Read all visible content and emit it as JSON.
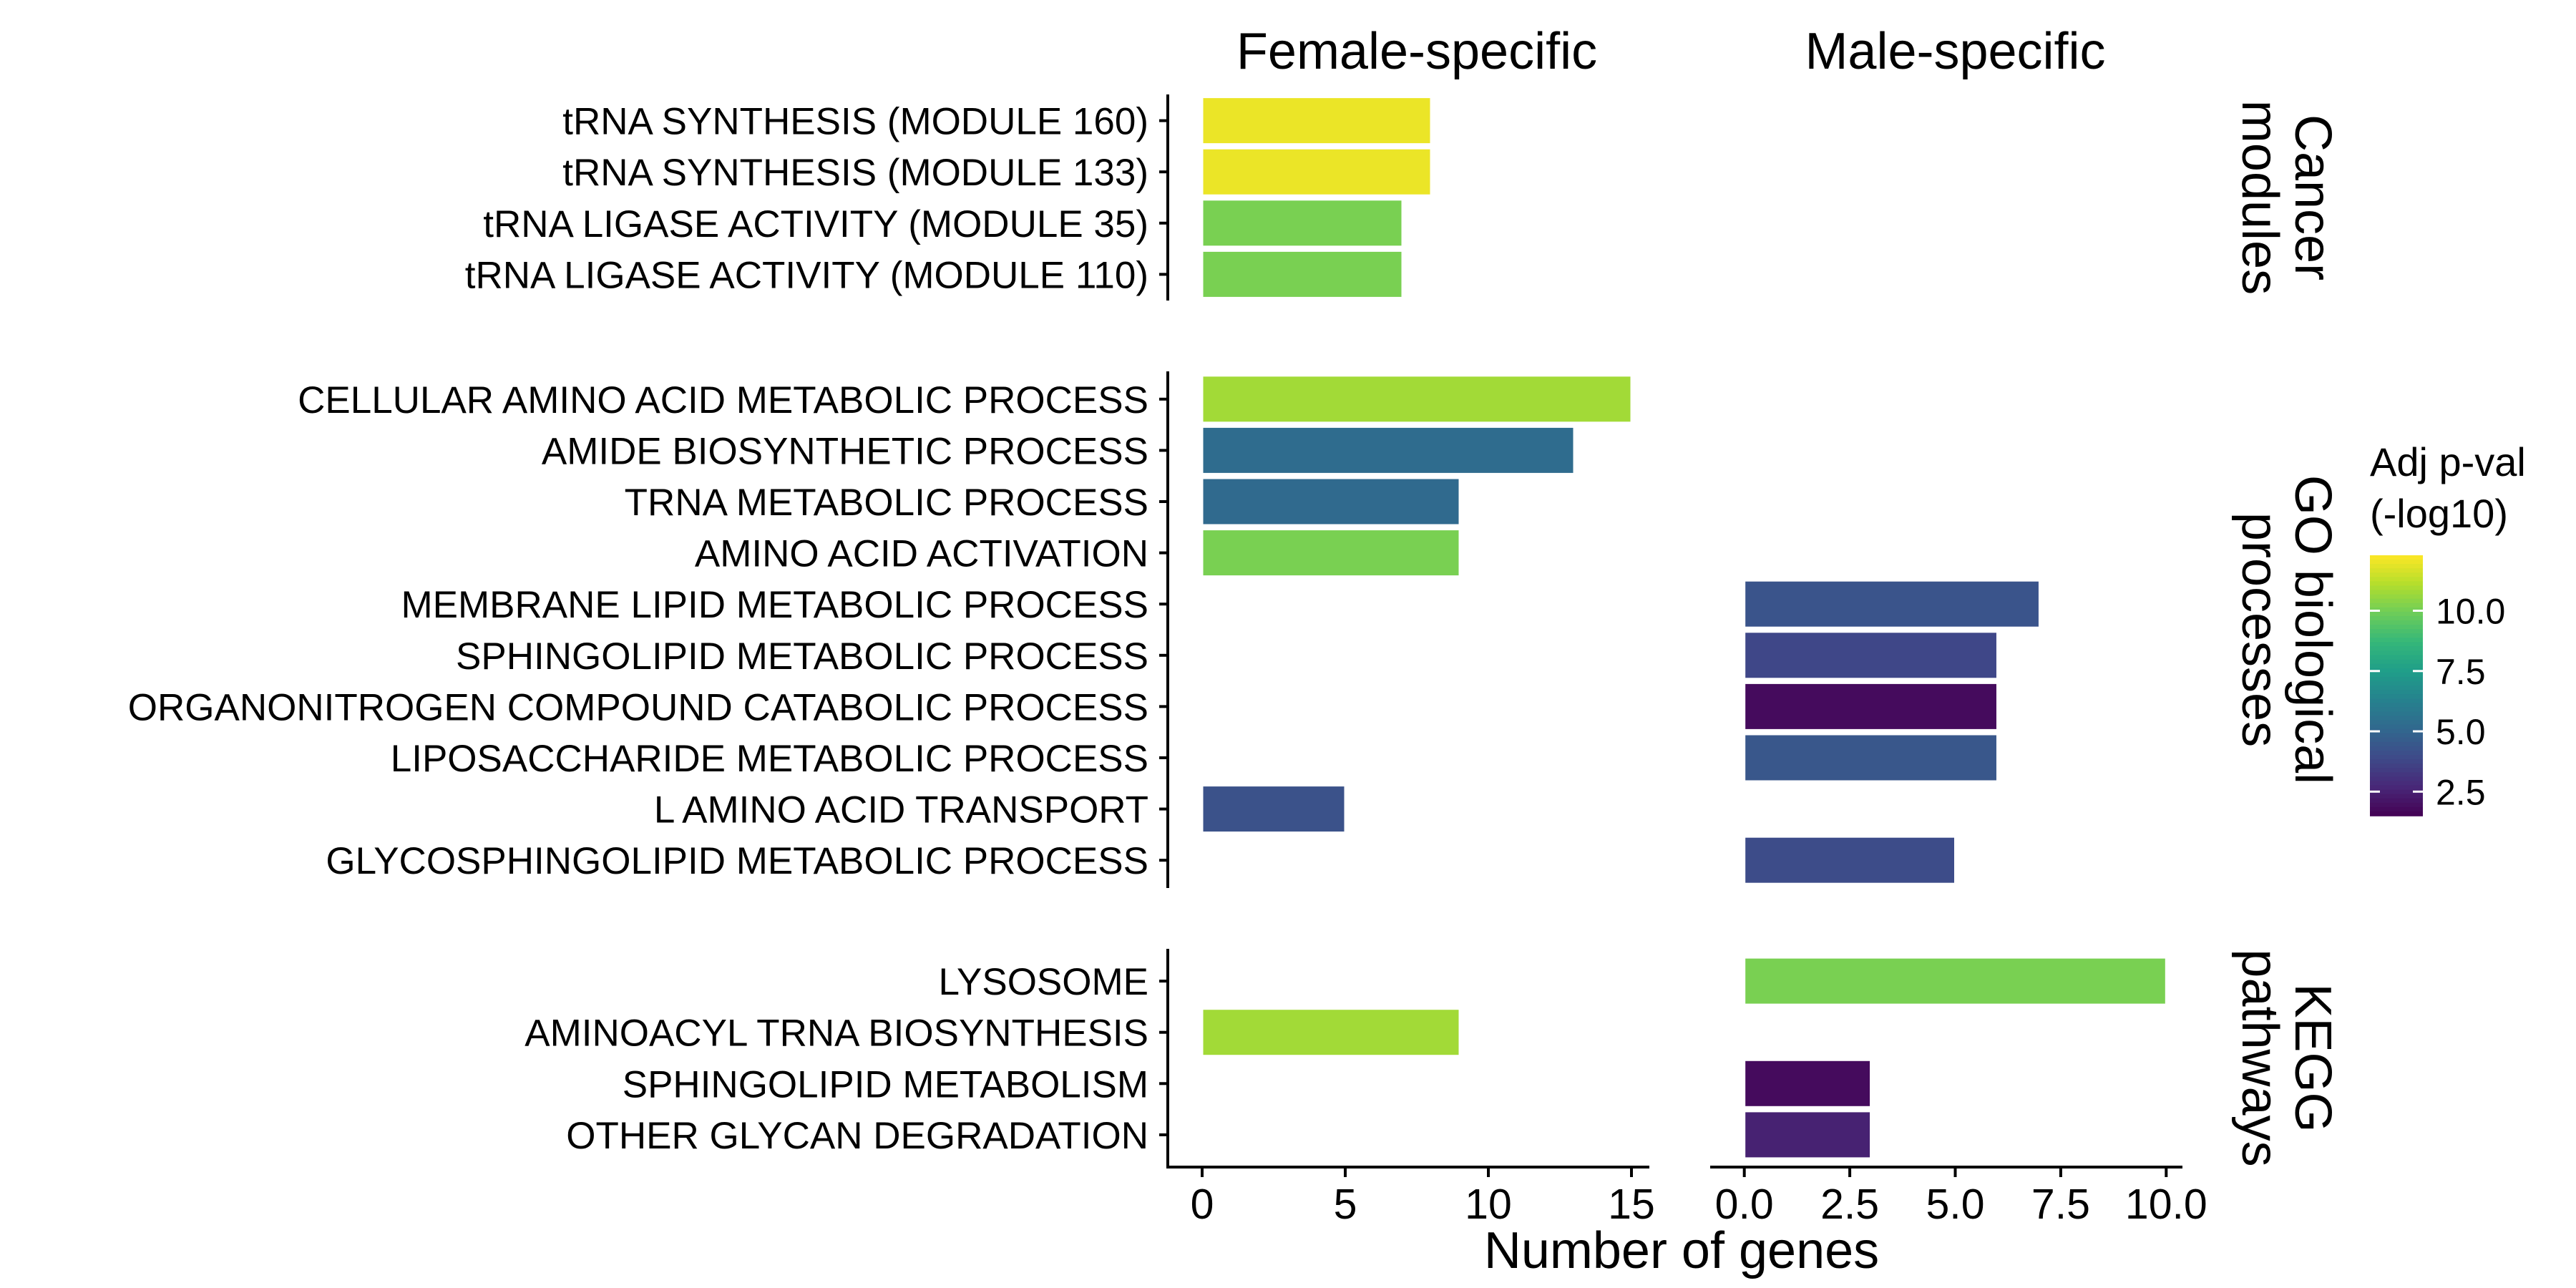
{
  "chart_data": {
    "type": "bar",
    "orientation": "horizontal",
    "xlabel": "Number of genes",
    "facets": [
      {
        "label": "Female-specific",
        "xlim": [
          -0.5,
          15.5
        ],
        "ticks": [
          0,
          5,
          10,
          15
        ],
        "tick_labels": [
          "0",
          "5",
          "10",
          "15"
        ]
      },
      {
        "label": "Male-specific",
        "xlim": [
          -0.3,
          10.3
        ],
        "ticks": [
          0,
          2.5,
          5,
          7.5,
          10
        ],
        "tick_labels": [
          "0.0",
          "2.5",
          "5.0",
          "7.5",
          "10.0"
        ]
      }
    ],
    "panels": [
      {
        "label": "Cancer modules",
        "label_lines": [
          "Cancer",
          "modules"
        ],
        "rows": [
          {
            "label": "tRNA SYNTHESIS (MODULE 160)",
            "female": 8,
            "female_p": 12.0,
            "male": null,
            "male_p": null
          },
          {
            "label": "tRNA SYNTHESIS (MODULE 133)",
            "female": 8,
            "female_p": 12.0,
            "male": null,
            "male_p": null
          },
          {
            "label": "tRNA LIGASE ACTIVITY (MODULE 35)",
            "female": 7,
            "female_p": 10.1,
            "male": null,
            "male_p": null
          },
          {
            "label": "tRNA LIGASE ACTIVITY (MODULE 110)",
            "female": 7,
            "female_p": 10.1,
            "male": null,
            "male_p": null
          }
        ]
      },
      {
        "label": "GO biological processes",
        "label_lines": [
          "GO biological",
          "processes"
        ],
        "rows": [
          {
            "label": "CELLULAR AMINO ACID METABOLIC PROCESS",
            "female": 15,
            "female_p": 10.8,
            "male": null,
            "male_p": null
          },
          {
            "label": "AMIDE BIOSYNTHETIC PROCESS",
            "female": 13,
            "female_p": 5.3,
            "male": null,
            "male_p": null
          },
          {
            "label": "TRNA METABOLIC PROCESS",
            "female": 9,
            "female_p": 5.2,
            "male": null,
            "male_p": null
          },
          {
            "label": "AMINO ACID ACTIVATION",
            "female": 9,
            "female_p": 10.1,
            "male": null,
            "male_p": null
          },
          {
            "label": "MEMBRANE LIPID METABOLIC PROCESS",
            "female": null,
            "female_p": null,
            "male": 7,
            "male_p": 4.3
          },
          {
            "label": "SPHINGOLIPID METABOLIC PROCESS",
            "female": null,
            "female_p": null,
            "male": 6,
            "male_p": 3.8
          },
          {
            "label": "ORGANONITROGEN COMPOUND CATABOLIC PROCESS",
            "female": null,
            "female_p": null,
            "male": 6,
            "male_p": 1.8
          },
          {
            "label": "LIPOSACCHARIDE METABOLIC PROCESS",
            "female": null,
            "female_p": null,
            "male": 6,
            "male_p": 4.4
          },
          {
            "label": "L AMINO ACID TRANSPORT",
            "female": 5,
            "female_p": 4.2,
            "male": null,
            "male_p": null
          },
          {
            "label": "GLYCOSPHINGOLIPID METABOLIC PROCESS",
            "female": null,
            "female_p": null,
            "male": 5,
            "male_p": 4.0
          }
        ]
      },
      {
        "label": "KEGG pathways",
        "label_lines": [
          "KEGG",
          "pathways"
        ],
        "rows": [
          {
            "label": "LYSOSOME",
            "female": null,
            "female_p": null,
            "male": 10,
            "male_p": 10.1
          },
          {
            "label": "AMINOACYL TRNA BIOSYNTHESIS",
            "female": 9,
            "female_p": 10.8,
            "male": null,
            "male_p": null
          },
          {
            "label": "SPHINGOLIPID METABOLISM",
            "female": null,
            "female_p": null,
            "male": 3,
            "male_p": 1.8
          },
          {
            "label": "OTHER GLYCAN DEGRADATION",
            "female": null,
            "female_p": null,
            "male": 3,
            "male_p": 2.5
          }
        ]
      }
    ],
    "legend": {
      "title_lines": [
        "Adj p-val",
        "(-log10)"
      ],
      "position": "right",
      "scale": "viridis",
      "range": [
        1.5,
        12.3
      ],
      "ticks": [
        10.0,
        7.5,
        5.0,
        2.5
      ],
      "tick_labels": [
        "10.0",
        "7.5",
        "5.0",
        "2.5"
      ],
      "colors": [
        "#440154",
        "#482878",
        "#3E4A89",
        "#31688E",
        "#26828E",
        "#1F9E89",
        "#35B779",
        "#6DCD59",
        "#B4DE2C",
        "#FDE725"
      ]
    },
    "grid": false
  }
}
